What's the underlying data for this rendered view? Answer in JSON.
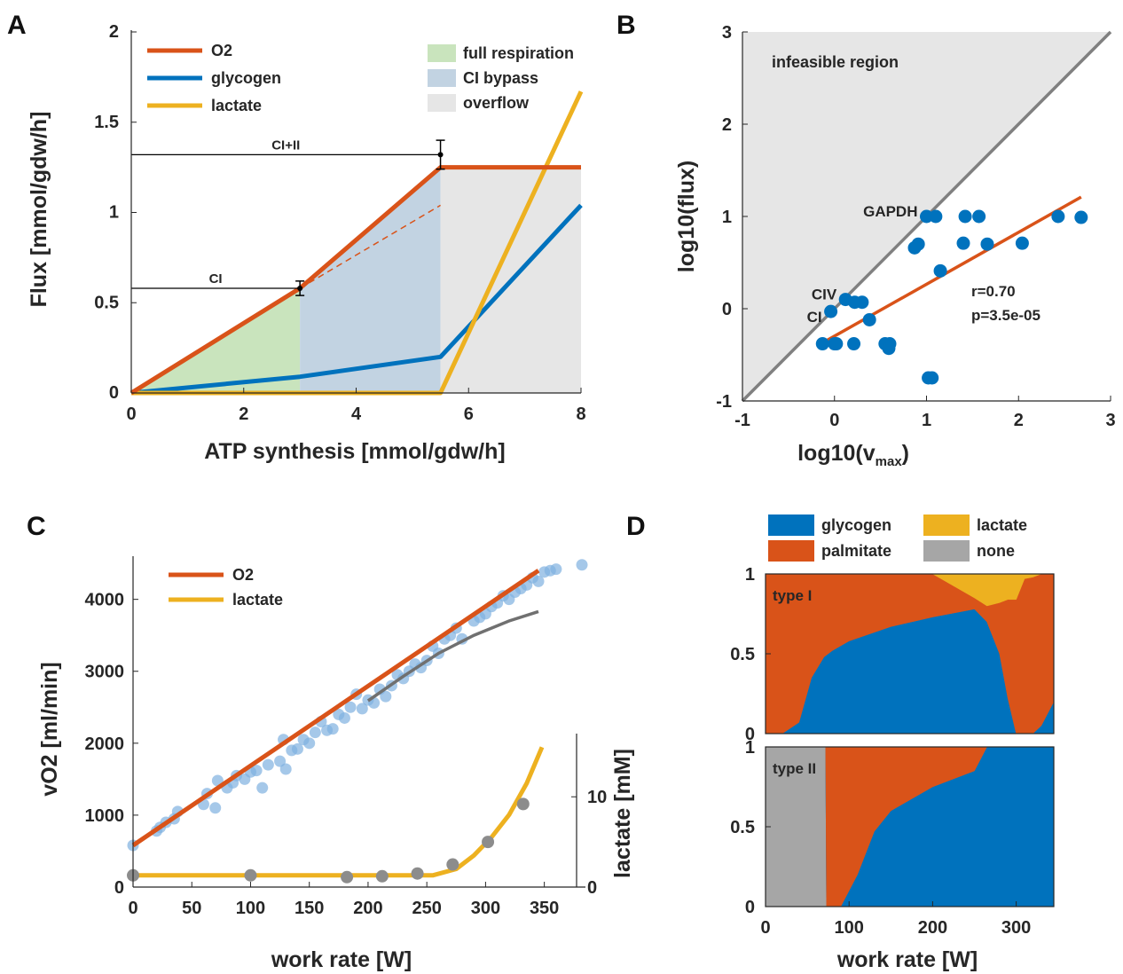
{
  "chart_data": [
    {
      "panel": "A",
      "type": "area",
      "xlabel": "ATP synthesis [mmol/gdw/h]",
      "ylabel": "Flux [mmol/gdw/h]",
      "xlim": [
        0,
        8
      ],
      "ylim": [
        0,
        2
      ],
      "xticks": [
        "0",
        "2",
        "4",
        "6",
        "8"
      ],
      "yticks": [
        "0",
        "0.5",
        "1",
        "1.5",
        "2"
      ],
      "ytick_values": [
        0,
        0.5,
        1,
        1.5,
        2
      ],
      "series": [
        {
          "name": "O2",
          "color": "#d95319",
          "x": [
            0,
            3,
            5.5,
            8
          ],
          "y": [
            0,
            0.58,
            1.25,
            1.25
          ]
        },
        {
          "name": "glycogen",
          "color": "#0072bd",
          "x": [
            0,
            3,
            5.5,
            8
          ],
          "y": [
            0,
            0.09,
            0.2,
            1.04
          ]
        },
        {
          "name": "lactate",
          "color": "#edb120",
          "x": [
            0,
            5.5,
            8
          ],
          "y": [
            0,
            0,
            1.67
          ]
        }
      ],
      "dashed_extrapolation": {
        "color": "#d95319",
        "x": [
          3,
          5.5
        ],
        "y": [
          0.58,
          1.04
        ]
      },
      "regions": [
        {
          "name": "full respiration",
          "color": "#c9e4bd",
          "x": [
            0,
            3
          ]
        },
        {
          "name": "CI bypass",
          "color": "#c2d3e2",
          "x": [
            3,
            5.5
          ]
        },
        {
          "name": "overflow",
          "color": "#e6e6e6",
          "x": [
            5.5,
            8
          ]
        }
      ],
      "reference_lines": [
        {
          "label": "CI",
          "y": 0.58,
          "x_end": 3.0,
          "err": 0.04
        },
        {
          "label": "CI+II",
          "y": 1.32,
          "x_end": 5.5,
          "err": 0.08
        }
      ]
    },
    {
      "panel": "B",
      "type": "scatter",
      "xlabel": "log10(v",
      "xlabel_sub": "max",
      "xlabel_end": ")",
      "ylabel": "log10(flux)",
      "xlim": [
        -1,
        3
      ],
      "ylim": [
        -1,
        3
      ],
      "xticks": [
        "-1",
        "0",
        "1",
        "2",
        "3"
      ],
      "yticks": [
        "-1",
        "0",
        "1",
        "2",
        "3"
      ],
      "region_label": "infeasible region",
      "point_color": "#0072bd",
      "fit_color": "#d95319",
      "diag_color": "#808080",
      "points_x": [
        -0.13,
        -0.04,
        0.02,
        0.12,
        0.22,
        0.3,
        0.38,
        0.21,
        0.55,
        0.6,
        0.87,
        0.91,
        1.0,
        1.1,
        1.15,
        1.4,
        1.42,
        1.57,
        1.66,
        2.04,
        2.43,
        2.68,
        0.0,
        0.59,
        1.02,
        1.06
      ],
      "points_y": [
        -0.38,
        -0.03,
        -0.38,
        0.1,
        0.07,
        0.07,
        -0.12,
        -0.38,
        -0.38,
        -0.38,
        0.66,
        0.7,
        1.0,
        1.0,
        0.41,
        0.71,
        1.0,
        1.0,
        0.7,
        0.71,
        1.0,
        0.99,
        -0.38,
        -0.43,
        -0.75,
        -0.75
      ],
      "fit": {
        "x": [
          -0.13,
          2.68
        ],
        "y": [
          -0.37,
          1.21
        ]
      },
      "point_labels": [
        {
          "text": "GAPDH",
          "x": 1.0,
          "y": 1.0
        },
        {
          "text": "CIV",
          "x": 0.12,
          "y": 0.1
        },
        {
          "text": "CI",
          "x": -0.04,
          "y": -0.03
        }
      ],
      "stats": [
        "r=0.70",
        "p=3.5e-05"
      ]
    },
    {
      "panel": "C",
      "type": "scatter",
      "xlabel": "work rate [W]",
      "ylabel": "vO2 [ml/min]",
      "ylabel_right": "lactate [mM]",
      "xlim": [
        0,
        385
      ],
      "ylim": [
        0,
        4600
      ],
      "ylim_right": [
        0,
        17
      ],
      "xticks": [
        "0",
        "50",
        "100",
        "150",
        "200",
        "250",
        "300",
        "350"
      ],
      "xtick_values": [
        0,
        50,
        100,
        150,
        200,
        250,
        300,
        350
      ],
      "yticks": [
        "0",
        "1000",
        "2000",
        "3000",
        "4000"
      ],
      "ytick_values": [
        0,
        1000,
        2000,
        3000,
        4000
      ],
      "yticks_right": [
        "0",
        "10"
      ],
      "ytick_values_right": [
        0,
        10
      ],
      "series": [
        {
          "name": "O2",
          "color": "#d95319",
          "x": [
            0,
            345
          ],
          "y": [
            580,
            4400
          ]
        },
        {
          "name": "lactate",
          "color": "#edb120",
          "x": [
            0,
            255,
            275,
            290,
            305,
            320,
            335,
            348
          ],
          "y": [
            1.3,
            1.3,
            2.0,
            3.5,
            5.5,
            8.0,
            11.5,
            15.5
          ]
        },
        {
          "name": "",
          "color": "#707070",
          "x": [
            200,
            230,
            260,
            290,
            320,
            345
          ],
          "y": [
            2590,
            2930,
            3250,
            3500,
            3700,
            3830
          ]
        }
      ],
      "scatter_vo2": {
        "color": "#7fb0e0",
        "x": [
          0,
          20,
          23,
          28,
          35,
          38,
          60,
          63,
          70,
          72,
          80,
          85,
          88,
          95,
          100,
          105,
          110,
          115,
          125,
          128,
          130,
          135,
          140,
          145,
          150,
          155,
          160,
          165,
          170,
          175,
          180,
          185,
          190,
          195,
          200,
          205,
          210,
          215,
          220,
          225,
          230,
          235,
          240,
          245,
          250,
          255,
          260,
          265,
          270,
          275,
          280,
          290,
          295,
          300,
          305,
          310,
          315,
          320,
          325,
          330,
          335,
          340,
          345,
          350,
          355,
          360,
          382
        ],
        "y": [
          580,
          780,
          830,
          900,
          950,
          1050,
          1150,
          1300,
          1100,
          1480,
          1380,
          1450,
          1550,
          1500,
          1600,
          1620,
          1380,
          1700,
          1750,
          2050,
          1640,
          1900,
          1920,
          2050,
          2000,
          2150,
          2300,
          2180,
          2200,
          2400,
          2350,
          2500,
          2680,
          2480,
          2600,
          2560,
          2750,
          2650,
          2800,
          2950,
          2900,
          3000,
          3100,
          3050,
          3150,
          3350,
          3250,
          3450,
          3500,
          3600,
          3450,
          3700,
          3750,
          3800,
          3900,
          3950,
          4050,
          4000,
          4100,
          4150,
          4200,
          4300,
          4250,
          4380,
          4400,
          4420,
          4480
        ]
      },
      "scatter_lactate": {
        "color": "#8c8c8c",
        "x": [
          0,
          100,
          182,
          212,
          242,
          272,
          302,
          332
        ],
        "y": [
          1.3,
          1.3,
          1.1,
          1.2,
          1.5,
          2.5,
          5.0,
          9.2
        ]
      }
    },
    {
      "panel": "D",
      "type": "area",
      "xlabel": "work rate [W]",
      "xlim": [
        0,
        345
      ],
      "ylim": [
        0,
        1
      ],
      "xticks": [
        "0",
        "100",
        "200",
        "300"
      ],
      "xtick_values": [
        0,
        100,
        200,
        300
      ],
      "yticks": [
        "0",
        "0.5",
        "1"
      ],
      "ytick_values": [
        0,
        0.5,
        1
      ],
      "legend": [
        {
          "name": "glycogen",
          "color": "#0072bd"
        },
        {
          "name": "lactate",
          "color": "#edb120"
        },
        {
          "name": "palmitate",
          "color": "#d95319"
        },
        {
          "name": "none",
          "color": "#a6a6a6"
        }
      ],
      "subplots": [
        {
          "label": "type I",
          "x": [
            0,
            20,
            40,
            55,
            70,
            80,
            100,
            150,
            200,
            250,
            265,
            280,
            290,
            300,
            310,
            320,
            330,
            340,
            345
          ],
          "glycogen": [
            0,
            0,
            0.07,
            0.35,
            0.48,
            0.52,
            0.58,
            0.67,
            0.73,
            0.78,
            0.7,
            0.5,
            0.22,
            0,
            0,
            0,
            0.05,
            0.15,
            0.2
          ],
          "palmitate": [
            1,
            1,
            0.93,
            0.65,
            0.52,
            0.48,
            0.42,
            0.33,
            0.27,
            0.07,
            0.1,
            0.32,
            0.62,
            0.84,
            0.97,
            0.98,
            0.95,
            0.85,
            0.8
          ],
          "lactate": [
            0,
            0,
            0,
            0,
            0,
            0,
            0,
            0,
            0,
            0.15,
            0.2,
            0.18,
            0.16,
            0.16,
            0.03,
            0.02,
            0,
            0,
            0
          ]
        },
        {
          "label": "type II",
          "x": [
            0,
            72,
            73,
            90,
            110,
            130,
            150,
            200,
            250,
            265,
            345
          ],
          "none": [
            1,
            1,
            0,
            0,
            0,
            0,
            0,
            0,
            0,
            0,
            0
          ],
          "glycogen": [
            0,
            0,
            0,
            0,
            0.2,
            0.47,
            0.6,
            0.75,
            0.85,
            1,
            1
          ],
          "palmitate": [
            0,
            0,
            1,
            1,
            0.8,
            0.53,
            0.4,
            0.25,
            0.15,
            0,
            0
          ]
        }
      ]
    }
  ],
  "panel_letters": [
    "A",
    "B",
    "C",
    "D"
  ]
}
